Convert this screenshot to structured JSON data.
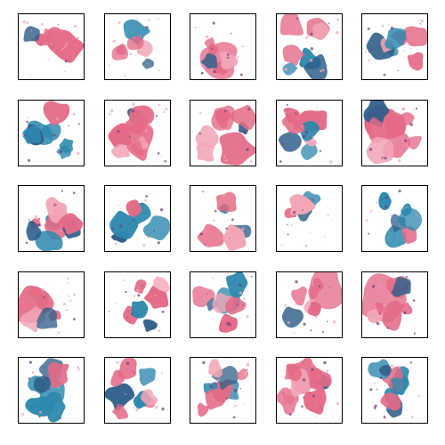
{
  "figure": {
    "rows": 5,
    "cols": 5,
    "frame_color": "#000000",
    "background": "#ffffff",
    "palette": {
      "pink": "#e46a86",
      "pink_light": "#f2a6b6",
      "blue": "#2d88ad",
      "blue_dark": "#2f5f8a",
      "purple": "#6a3e78"
    },
    "panels": [
      {
        "name": "sample-1-1",
        "dominant": "pink"
      },
      {
        "name": "sample-1-2",
        "dominant": "mixed"
      },
      {
        "name": "sample-1-3",
        "dominant": "pink"
      },
      {
        "name": "sample-1-4",
        "dominant": "mixed"
      },
      {
        "name": "sample-1-5",
        "dominant": "mixed"
      },
      {
        "name": "sample-2-1",
        "dominant": "blue"
      },
      {
        "name": "sample-2-2",
        "dominant": "pink"
      },
      {
        "name": "sample-2-3",
        "dominant": "pink"
      },
      {
        "name": "sample-2-4",
        "dominant": "mixed"
      },
      {
        "name": "sample-2-5",
        "dominant": "pink"
      },
      {
        "name": "sample-3-1",
        "dominant": "mixed"
      },
      {
        "name": "sample-3-2",
        "dominant": "blue"
      },
      {
        "name": "sample-3-3",
        "dominant": "mixed"
      },
      {
        "name": "sample-3-4",
        "dominant": "mixed"
      },
      {
        "name": "sample-3-5",
        "dominant": "blue"
      },
      {
        "name": "sample-4-1",
        "dominant": "pink"
      },
      {
        "name": "sample-4-2",
        "dominant": "mixed"
      },
      {
        "name": "sample-4-3",
        "dominant": "mixed"
      },
      {
        "name": "sample-4-4",
        "dominant": "pink"
      },
      {
        "name": "sample-4-5",
        "dominant": "pink"
      },
      {
        "name": "sample-5-1",
        "dominant": "blue"
      },
      {
        "name": "sample-5-2",
        "dominant": "mixed"
      },
      {
        "name": "sample-5-3",
        "dominant": "mixed"
      },
      {
        "name": "sample-5-4",
        "dominant": "pink"
      },
      {
        "name": "sample-5-5",
        "dominant": "blue"
      }
    ]
  }
}
